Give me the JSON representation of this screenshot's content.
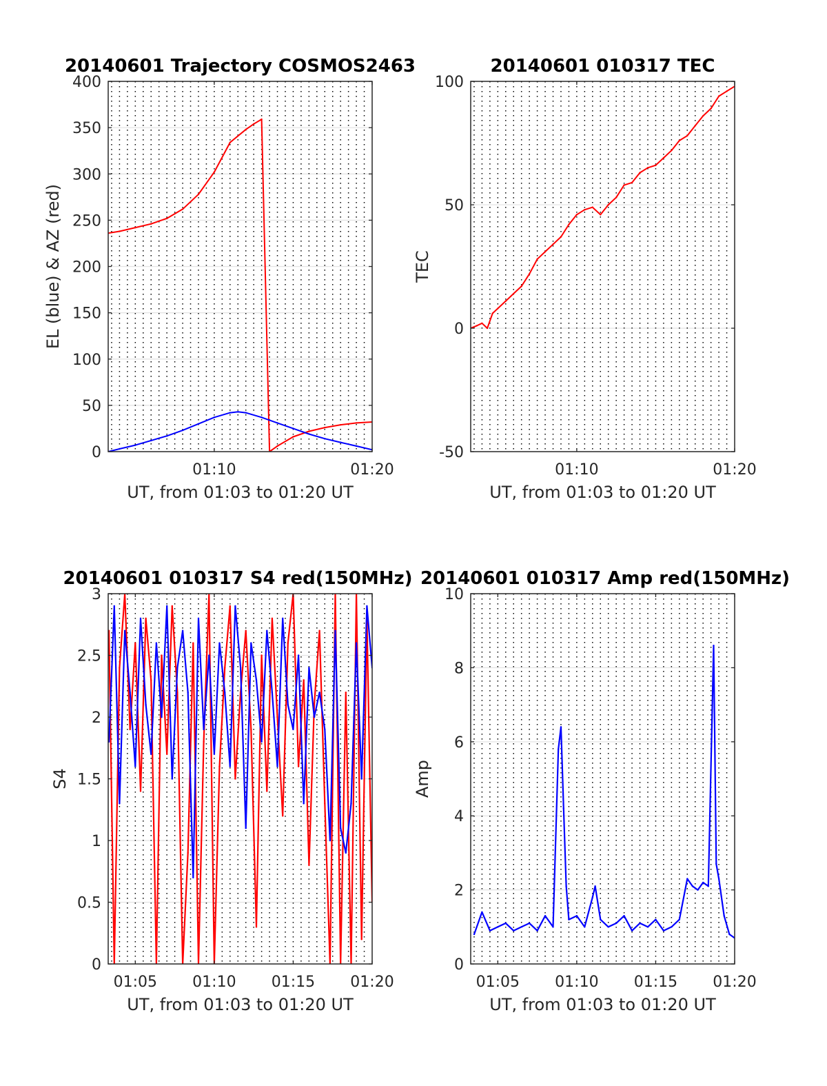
{
  "chart_data": [
    {
      "type": "line",
      "title": "20140601 Trajectory COSMOS2463",
      "xlabel": "UT, from 01:03 to 01:20 UT",
      "ylabel": "EL (blue) & AZ (red)",
      "xlim": [
        "01:03:17",
        "01:20:00"
      ],
      "ylim": [
        0,
        400
      ],
      "yticks": [
        0,
        50,
        100,
        150,
        200,
        250,
        300,
        350,
        400
      ],
      "xticks": [
        "01:10",
        "01:20"
      ],
      "grid": "dotted vertical every 30 s; horizontal at y ticks",
      "series": [
        {
          "name": "AZ",
          "color": "#ff0000",
          "x": [
            "01:03:17",
            "01:04:00",
            "01:05:00",
            "01:06:00",
            "01:07:00",
            "01:08:00",
            "01:09:00",
            "01:10:00",
            "01:11:00",
            "01:12:00",
            "01:12:30",
            "01:13:00",
            "01:13:30",
            "01:14:00",
            "01:15:00",
            "01:16:00",
            "01:17:00",
            "01:18:00",
            "01:19:00",
            "01:20:00"
          ],
          "y": [
            236,
            238,
            242,
            246,
            252,
            262,
            278,
            302,
            334,
            348,
            354,
            359,
            0,
            6,
            16,
            22,
            26,
            29,
            31,
            32
          ]
        },
        {
          "name": "EL",
          "color": "#0000ff",
          "x": [
            "01:03:17",
            "01:04:00",
            "01:05:00",
            "01:06:00",
            "01:07:00",
            "01:08:00",
            "01:09:00",
            "01:10:00",
            "01:11:00",
            "01:11:30",
            "01:12:00",
            "01:13:00",
            "01:14:00",
            "01:15:00",
            "01:16:00",
            "01:17:00",
            "01:18:00",
            "01:19:00",
            "01:20:00"
          ],
          "y": [
            0,
            3,
            7,
            12,
            17,
            23,
            30,
            37,
            42,
            43,
            42,
            37,
            31,
            25,
            19,
            14,
            10,
            6,
            2
          ]
        }
      ]
    },
    {
      "type": "line",
      "title": "20140601 010317 TEC",
      "xlabel": "UT, from 01:03 to 01:20 UT",
      "ylabel": "TEC",
      "xlim": [
        "01:03:17",
        "01:20:00"
      ],
      "ylim": [
        -50,
        100
      ],
      "yticks": [
        -50,
        0,
        50,
        100
      ],
      "xticks": [
        "01:10",
        "01:20"
      ],
      "series": [
        {
          "name": "TEC",
          "color": "#ff0000",
          "x": [
            "01:03:17",
            "01:03:40",
            "01:04:00",
            "01:04:20",
            "01:04:40",
            "01:05:00",
            "01:05:30",
            "01:06:00",
            "01:06:30",
            "01:07:00",
            "01:07:30",
            "01:08:00",
            "01:08:30",
            "01:09:00",
            "01:09:30",
            "01:10:00",
            "01:10:30",
            "01:11:00",
            "01:11:30",
            "01:12:00",
            "01:12:30",
            "01:13:00",
            "01:13:30",
            "01:14:00",
            "01:14:30",
            "01:15:00",
            "01:15:30",
            "01:16:00",
            "01:16:30",
            "01:17:00",
            "01:17:30",
            "01:18:00",
            "01:18:30",
            "01:19:00",
            "01:19:30",
            "01:20:00"
          ],
          "y": [
            0,
            1,
            2,
            0,
            6,
            8,
            11,
            14,
            17,
            22,
            28,
            31,
            34,
            37,
            42,
            46,
            48,
            49,
            46,
            50,
            53,
            58,
            59,
            63,
            65,
            66,
            69,
            72,
            76,
            78,
            82,
            86,
            89,
            94,
            96,
            98
          ]
        }
      ]
    },
    {
      "type": "line",
      "title": "20140601 010317 S4 red(150MHz)",
      "xlabel": "UT, from 01:03 to 01:20 UT",
      "ylabel": "S4",
      "xlim": [
        "01:03:17",
        "01:20:00"
      ],
      "ylim": [
        0,
        3
      ],
      "yticks": [
        0,
        0.5,
        1,
        1.5,
        2,
        2.5,
        3
      ],
      "xticks": [
        "01:05",
        "01:10",
        "01:15",
        "01:20"
      ],
      "series": [
        {
          "name": "S4 red",
          "color": "#ff0000",
          "x": [
            "01:03:20",
            "01:03:40",
            "01:04:00",
            "01:04:20",
            "01:04:40",
            "01:05:00",
            "01:05:20",
            "01:05:40",
            "01:06:00",
            "01:06:20",
            "01:06:40",
            "01:07:00",
            "01:07:20",
            "01:07:40",
            "01:08:00",
            "01:08:20",
            "01:08:40",
            "01:09:00",
            "01:09:20",
            "01:09:40",
            "01:10:00",
            "01:10:20",
            "01:10:40",
            "01:11:00",
            "01:11:20",
            "01:11:40",
            "01:12:00",
            "01:12:20",
            "01:12:40",
            "01:13:00",
            "01:13:20",
            "01:13:40",
            "01:14:00",
            "01:14:20",
            "01:14:40",
            "01:15:00",
            "01:15:20",
            "01:15:40",
            "01:16:00",
            "01:16:20",
            "01:16:40",
            "01:17:00",
            "01:17:20",
            "01:17:40",
            "01:18:00",
            "01:18:20",
            "01:18:40",
            "01:19:00",
            "01:19:20",
            "01:19:40",
            "01:20:00"
          ],
          "y": [
            2.7,
            0,
            2.4,
            3,
            1.9,
            2.6,
            1.4,
            2.8,
            2.3,
            0,
            2.5,
            1.7,
            2.9,
            2.2,
            0,
            0.9,
            2.6,
            0,
            1.8,
            3,
            0,
            1.6,
            2.4,
            2.9,
            1.5,
            2.2,
            2.7,
            1.9,
            0.3,
            2.5,
            1.4,
            2.8,
            2.0,
            1.2,
            2.6,
            3,
            1.6,
            2.3,
            0.8,
            2.1,
            2.7,
            1.3,
            0,
            3,
            0,
            2.2,
            0,
            3,
            0.2,
            2.8,
            0.5
          ]
        },
        {
          "name": "S4 blue",
          "color": "#0000ff",
          "x": [
            "01:03:20",
            "01:03:40",
            "01:04:00",
            "01:04:20",
            "01:04:40",
            "01:05:00",
            "01:05:20",
            "01:05:40",
            "01:06:00",
            "01:06:20",
            "01:06:40",
            "01:07:00",
            "01:07:20",
            "01:07:40",
            "01:08:00",
            "01:08:20",
            "01:08:40",
            "01:09:00",
            "01:09:20",
            "01:09:40",
            "01:10:00",
            "01:10:20",
            "01:10:40",
            "01:11:00",
            "01:11:20",
            "01:11:40",
            "01:12:00",
            "01:12:20",
            "01:12:40",
            "01:13:00",
            "01:13:20",
            "01:13:40",
            "01:14:00",
            "01:14:20",
            "01:14:40",
            "01:15:00",
            "01:15:20",
            "01:15:40",
            "01:16:00",
            "01:16:20",
            "01:16:40",
            "01:17:00",
            "01:17:20",
            "01:17:40",
            "01:18:00",
            "01:18:20",
            "01:18:40",
            "01:19:00",
            "01:19:20",
            "01:19:40",
            "01:20:00"
          ],
          "y": [
            1.8,
            2.9,
            1.3,
            2.7,
            2.2,
            1.6,
            2.8,
            2.1,
            1.7,
            2.6,
            2.0,
            2.9,
            1.5,
            2.4,
            2.7,
            2.2,
            0.7,
            2.8,
            1.9,
            2.5,
            1.7,
            2.6,
            2.2,
            1.6,
            2.9,
            2.4,
            1.1,
            2.6,
            2.3,
            1.8,
            2.7,
            2.2,
            1.6,
            2.8,
            2.1,
            1.9,
            2.5,
            1.3,
            2.4,
            2.0,
            2.2,
            1.9,
            1.0,
            2.7,
            1.1,
            0.9,
            1.3,
            2.6,
            1.5,
            2.9,
            2.4
          ]
        }
      ]
    },
    {
      "type": "line",
      "title": "20140601 010317 Amp red(150MHz)",
      "xlabel": "UT, from 01:03 to 01:20 UT",
      "ylabel": "Amp",
      "xlim": [
        "01:03:17",
        "01:20:00"
      ],
      "ylim": [
        0,
        10
      ],
      "yticks": [
        0,
        2,
        4,
        6,
        8,
        10
      ],
      "xticks": [
        "01:05",
        "01:10",
        "01:15",
        "01:20"
      ],
      "series": [
        {
          "name": "Amp",
          "color": "#0000ff",
          "x": [
            "01:03:30",
            "01:04:00",
            "01:04:30",
            "01:05:00",
            "01:05:30",
            "01:06:00",
            "01:06:30",
            "01:07:00",
            "01:07:30",
            "01:08:00",
            "01:08:30",
            "01:08:50",
            "01:09:00",
            "01:09:10",
            "01:09:20",
            "01:09:30",
            "01:10:00",
            "01:10:30",
            "01:11:00",
            "01:11:10",
            "01:11:30",
            "01:12:00",
            "01:12:30",
            "01:13:00",
            "01:13:30",
            "01:14:00",
            "01:14:30",
            "01:15:00",
            "01:15:30",
            "01:16:00",
            "01:16:30",
            "01:17:00",
            "01:17:20",
            "01:17:40",
            "01:18:00",
            "01:18:20",
            "01:18:40",
            "01:18:50",
            "01:19:00",
            "01:19:20",
            "01:19:40",
            "01:20:00"
          ],
          "y": [
            0.8,
            1.4,
            0.9,
            1.0,
            1.1,
            0.9,
            1.0,
            1.1,
            0.9,
            1.3,
            1.0,
            5.8,
            6.4,
            4.2,
            2.1,
            1.2,
            1.3,
            1.0,
            1.8,
            2.1,
            1.2,
            1.0,
            1.1,
            1.3,
            0.9,
            1.1,
            1.0,
            1.2,
            0.9,
            1.0,
            1.2,
            2.3,
            2.1,
            2.0,
            2.2,
            2.1,
            8.6,
            2.7,
            2.3,
            1.3,
            0.8,
            0.7
          ]
        }
      ]
    }
  ]
}
